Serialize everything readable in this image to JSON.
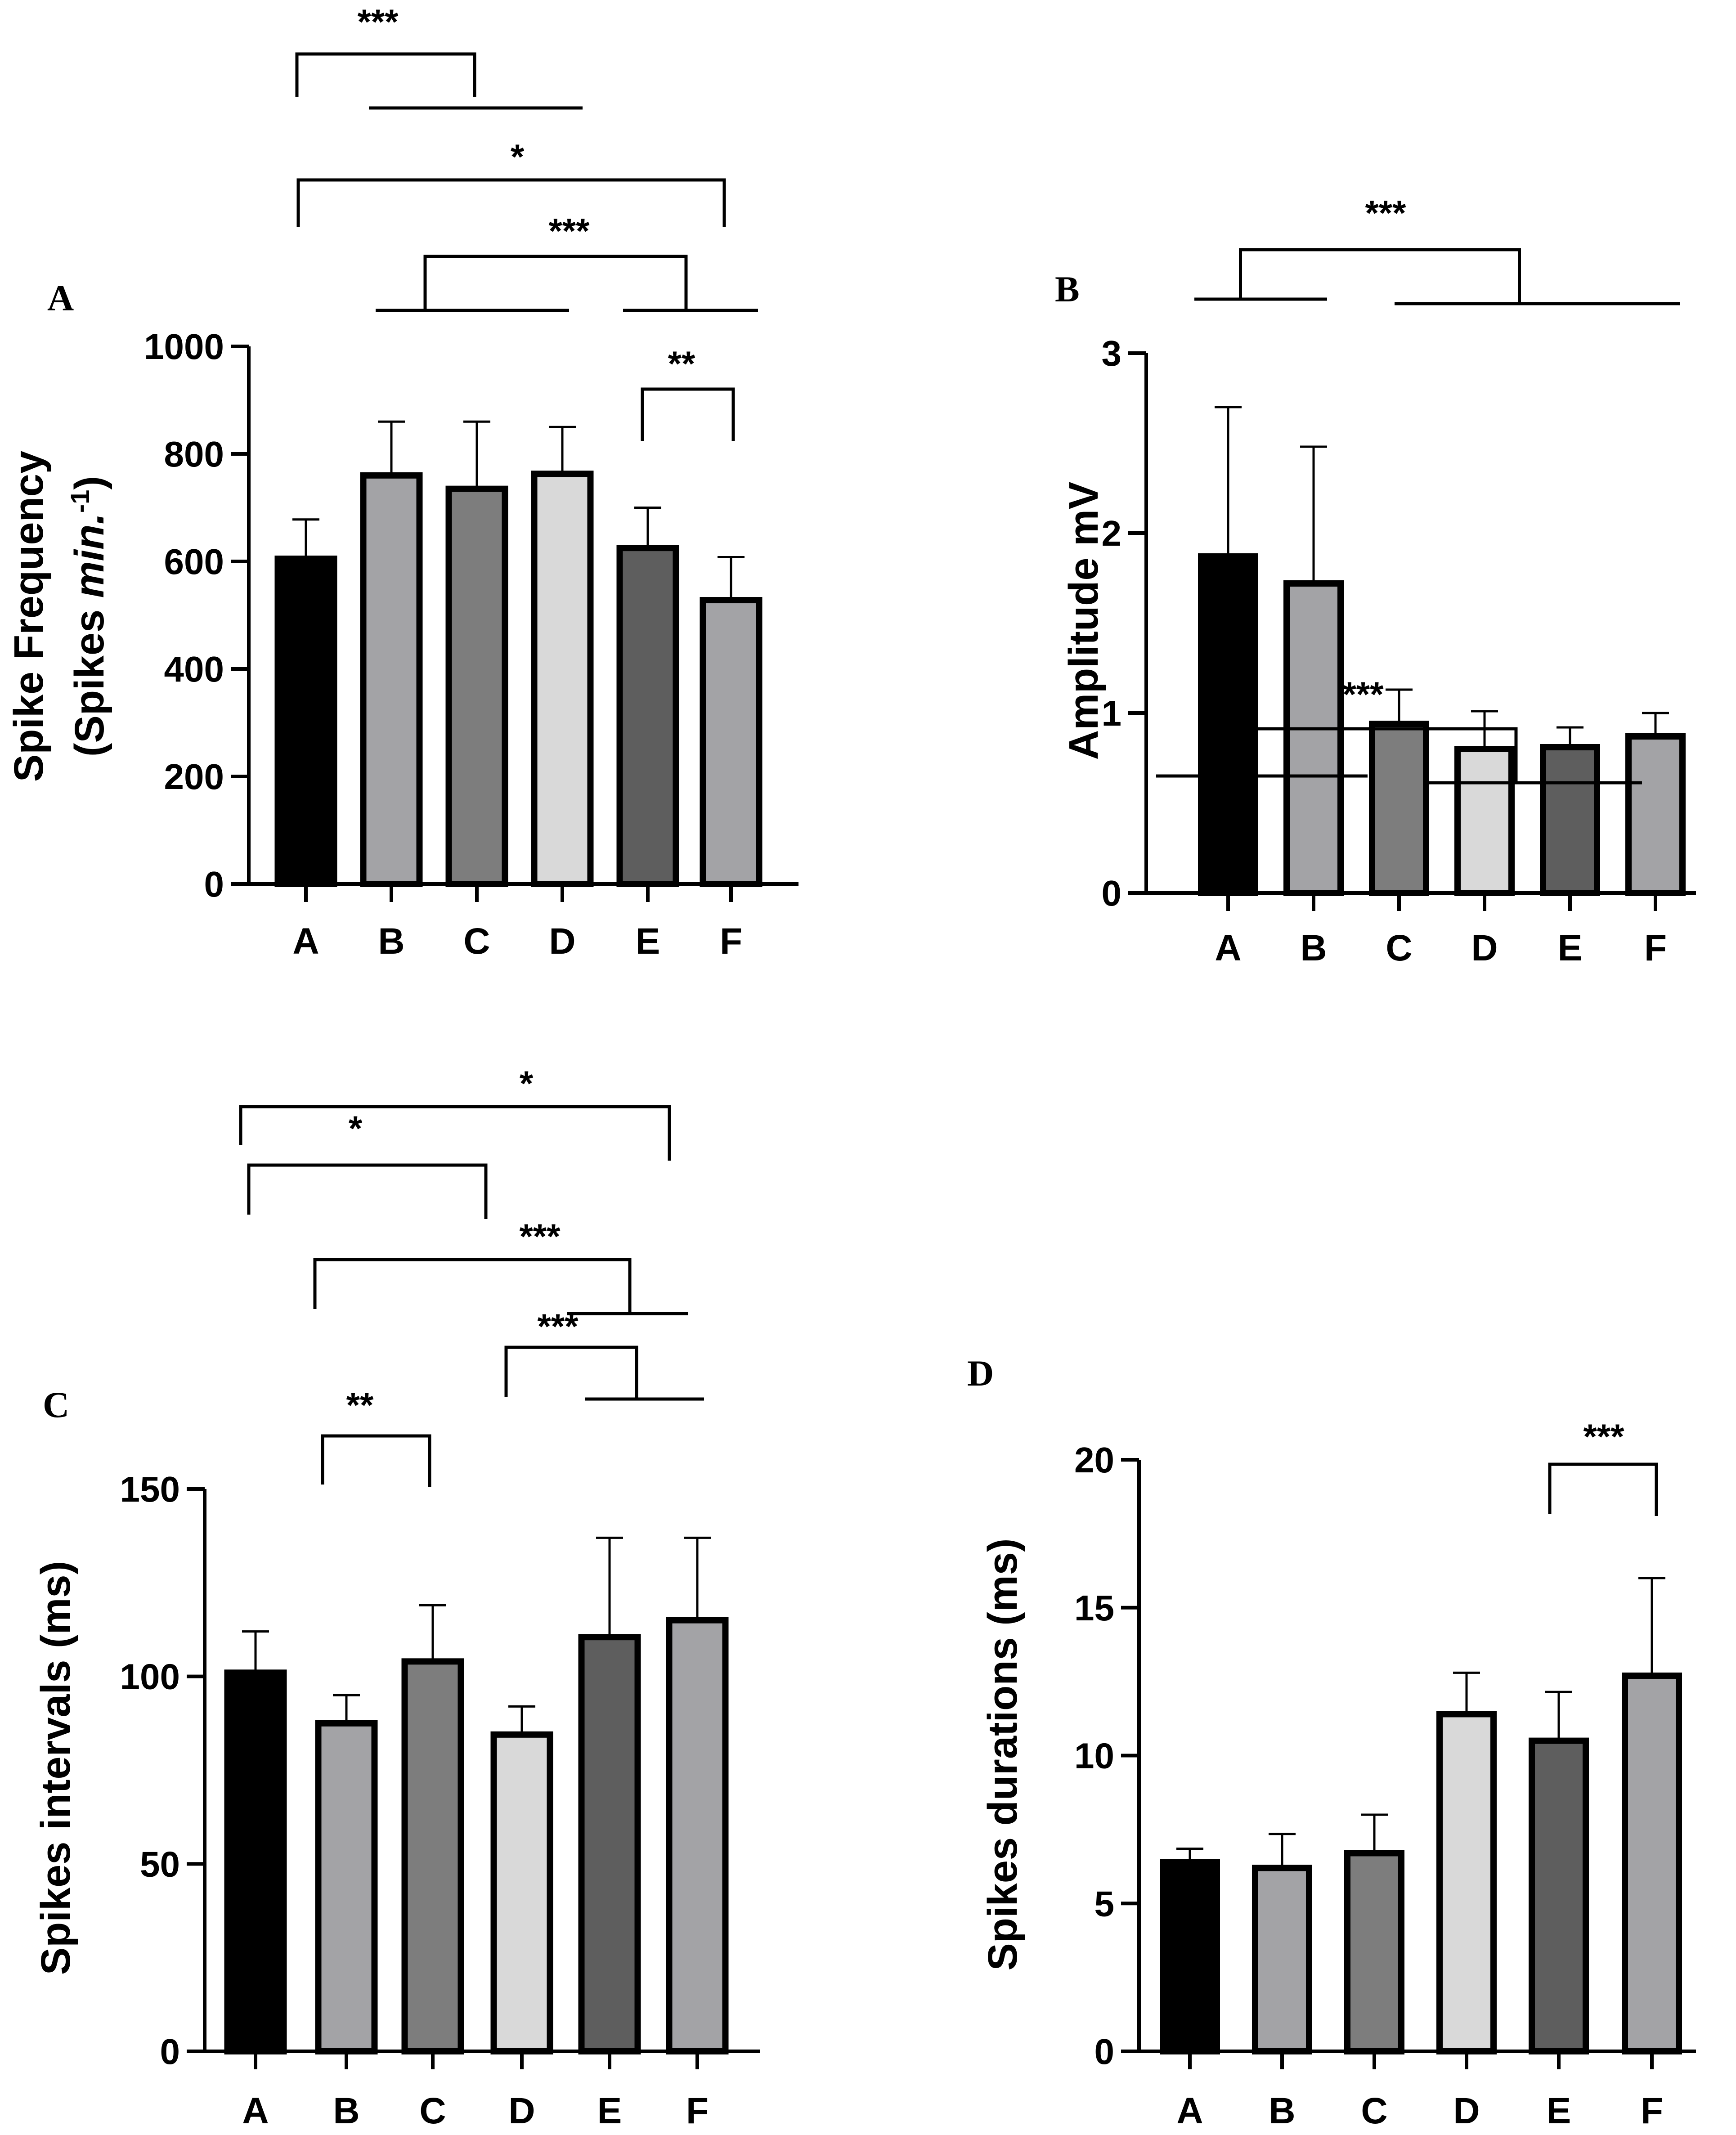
{
  "chart_data": [
    {
      "panel": "A",
      "type": "bar",
      "ylabel_line1": "Spike Frequency",
      "ylabel_line2_prefix": "(Spikes ",
      "ylabel_line2_italic": "min.",
      "ylabel_line2_sup": "-1",
      "ylabel_line2_suffix": ")",
      "ylim": [
        0,
        1000
      ],
      "yticks": [
        0,
        200,
        400,
        600,
        800,
        1000
      ],
      "categories": [
        "A",
        "B",
        "C",
        "D",
        "E",
        "F"
      ],
      "values": [
        605,
        760,
        735,
        763,
        625,
        528
      ],
      "errors": [
        73,
        100,
        125,
        87,
        75,
        80
      ],
      "colors": [
        "#000000",
        "#a3a3a6",
        "#7d7d7d",
        "#d9d9d9",
        "#5e5e5e",
        "#a3a3a6"
      ],
      "significance": [
        {
          "label": "***",
          "groups": [
            [
              "A"
            ],
            [
              "B",
              "C",
              "D"
            ]
          ]
        },
        {
          "label": "*",
          "groups": [
            [
              "A"
            ],
            [
              "F"
            ]
          ]
        },
        {
          "label": "***",
          "groups": [
            [
              "B",
              "C",
              "D"
            ],
            [
              "E",
              "F"
            ]
          ]
        },
        {
          "label": "**",
          "groups": [
            [
              "E"
            ],
            [
              "F"
            ]
          ]
        }
      ]
    },
    {
      "panel": "B",
      "type": "bar",
      "ylabel": "Amplitude mV",
      "ylim": [
        0,
        3
      ],
      "yticks": [
        0,
        1,
        2,
        3
      ],
      "categories": [
        "A",
        "B",
        "C",
        "D",
        "E",
        "F"
      ],
      "values": [
        1.87,
        1.72,
        0.94,
        0.8,
        0.81,
        0.87
      ],
      "errors": [
        0.83,
        0.76,
        0.19,
        0.21,
        0.11,
        0.13
      ],
      "colors": [
        "#000000",
        "#a3a3a6",
        "#7d7d7d",
        "#d9d9d9",
        "#5e5e5e",
        "#a3a3a6"
      ],
      "significance": [
        {
          "label": "***",
          "groups": [
            [
              "A",
              "B"
            ],
            [
              "C",
              "D",
              "E",
              "F"
            ]
          ]
        }
      ]
    },
    {
      "panel": "C",
      "type": "bar",
      "ylabel": "Spikes intervals (ms)",
      "ylim": [
        0,
        150
      ],
      "yticks": [
        0,
        50,
        100,
        150
      ],
      "categories": [
        "A",
        "B",
        "C",
        "D",
        "E",
        "F"
      ],
      "values": [
        101,
        87.5,
        104,
        84.5,
        110.5,
        115
      ],
      "errors": [
        11,
        7.5,
        15,
        7.5,
        26.5,
        22
      ],
      "colors": [
        "#000000",
        "#a3a3a6",
        "#7d7d7d",
        "#d9d9d9",
        "#5e5e5e",
        "#a3a3a6"
      ],
      "significance": [
        {
          "label": "*",
          "groups": [
            [
              "A"
            ],
            [
              "F"
            ]
          ]
        },
        {
          "label": "*",
          "groups": [
            [
              "A"
            ],
            [
              "C"
            ]
          ]
        },
        {
          "label": "***",
          "groups": [
            [
              "B"
            ],
            [
              "E",
              "F"
            ]
          ]
        },
        {
          "label": "***",
          "groups": [
            [
              "D"
            ],
            [
              "E",
              "F"
            ]
          ]
        },
        {
          "label": "**",
          "groups": [
            [
              "B"
            ],
            [
              "C"
            ]
          ]
        }
      ]
    },
    {
      "panel": "D",
      "type": "bar",
      "ylabel": "Spikes durations (ms)",
      "ylim": [
        0,
        20
      ],
      "yticks": [
        0,
        5,
        10,
        15,
        20
      ],
      "categories": [
        "A",
        "B",
        "C",
        "D",
        "E",
        "F"
      ],
      "values": [
        6.4,
        6.2,
        6.7,
        11.4,
        10.5,
        12.7
      ],
      "errors": [
        0.45,
        1.15,
        1.3,
        1.4,
        1.65,
        3.3
      ],
      "colors": [
        "#000000",
        "#a3a3a6",
        "#7d7d7d",
        "#d9d9d9",
        "#5e5e5e",
        "#a3a3a6"
      ],
      "significance": [
        {
          "label": "***",
          "groups": [
            [
              "A",
              "B",
              "C"
            ],
            [
              "D",
              "E",
              "F"
            ]
          ]
        },
        {
          "label": "***",
          "groups": [
            [
              "E"
            ],
            [
              "F"
            ]
          ]
        }
      ]
    }
  ]
}
